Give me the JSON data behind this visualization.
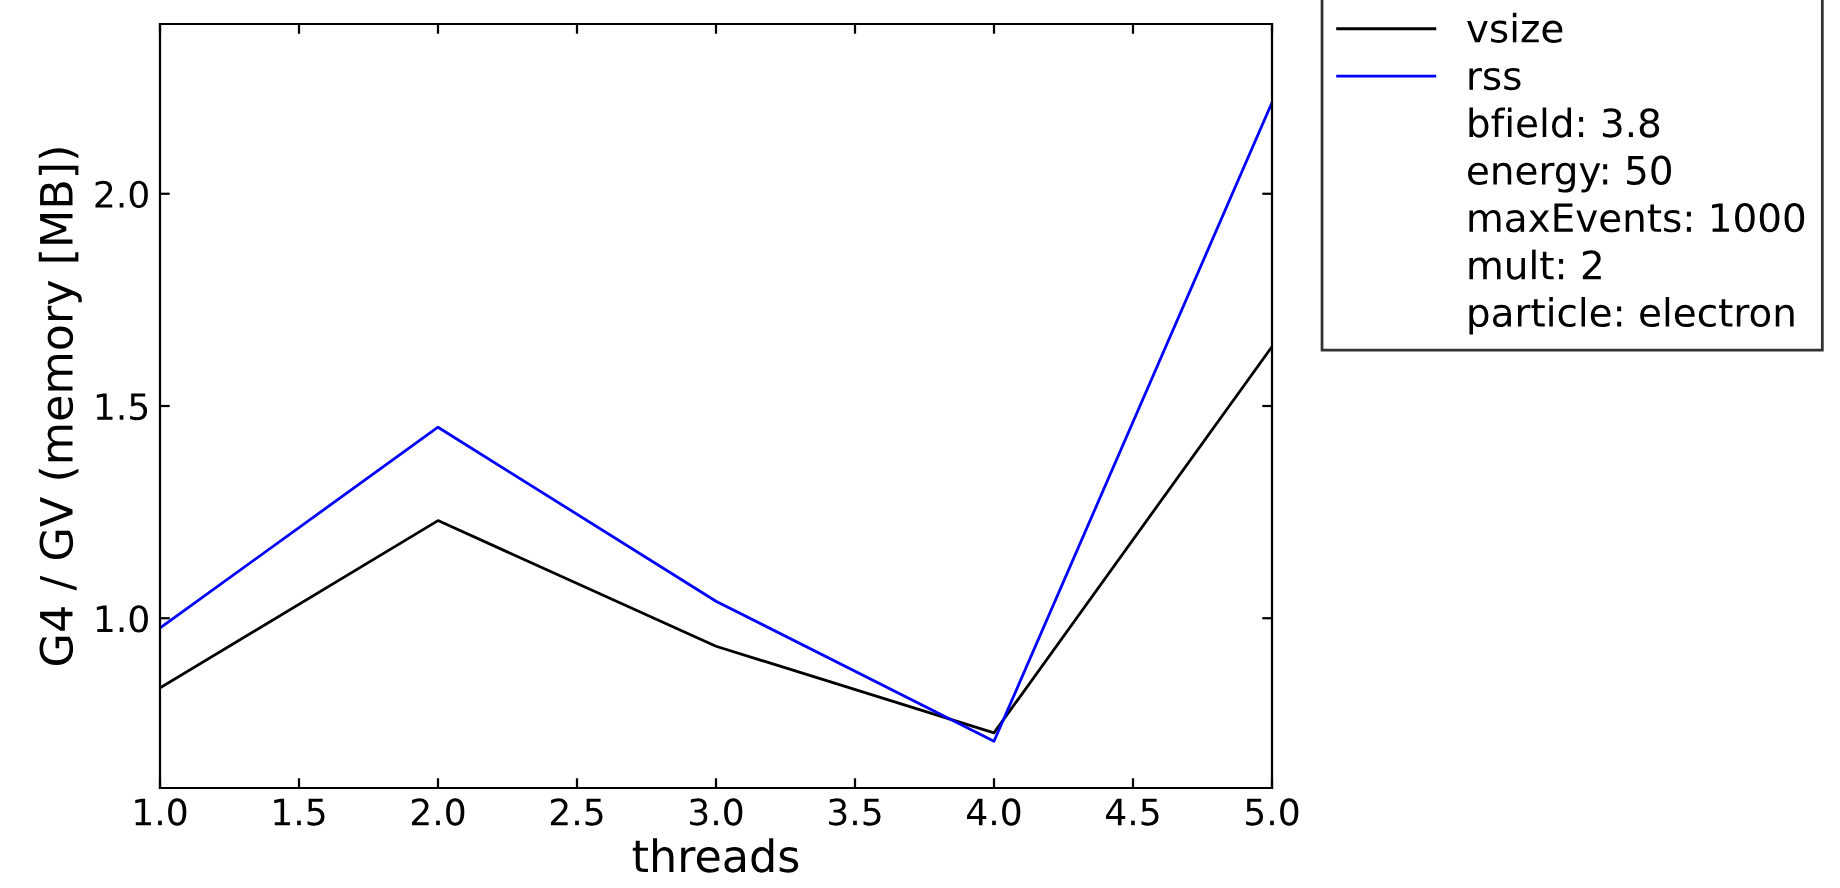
{
  "chart_data": {
    "type": "line",
    "xlabel": "threads",
    "ylabel": "G4 / GV (memory [MB])",
    "x": [
      1,
      2,
      3,
      4,
      5
    ],
    "series": [
      {
        "name": "vsize",
        "color": "#000000",
        "values": [
          0.836,
          1.23,
          0.934,
          0.73,
          1.64
        ]
      },
      {
        "name": "rss",
        "color": "#0000ff",
        "values": [
          0.977,
          1.45,
          1.04,
          0.71,
          2.215
        ]
      }
    ],
    "annotations": [
      "bfield: 3.8",
      "energy: 50",
      "maxEvents: 1000",
      "mult: 2",
      "particle: electron"
    ],
    "xlim": [
      1,
      5
    ],
    "xticks": [
      {
        "value": 1,
        "label": "1.0"
      },
      {
        "value": 1.5,
        "label": "1.5"
      },
      {
        "value": 2,
        "label": "2.0"
      },
      {
        "value": 2.5,
        "label": "2.5"
      },
      {
        "value": 3,
        "label": "3.0"
      },
      {
        "value": 3.5,
        "label": "3.5"
      },
      {
        "value": 4,
        "label": "4.0"
      },
      {
        "value": 4.5,
        "label": "4.5"
      },
      {
        "value": 5,
        "label": "5.0"
      }
    ],
    "ylim": [
      0.6,
      2.4
    ],
    "yticks": [
      {
        "value": 1,
        "label": "1.0"
      },
      {
        "value": 1.5,
        "label": "1.5"
      },
      {
        "value": 2,
        "label": "2.0"
      }
    ],
    "legend": "top right",
    "grid": false
  }
}
